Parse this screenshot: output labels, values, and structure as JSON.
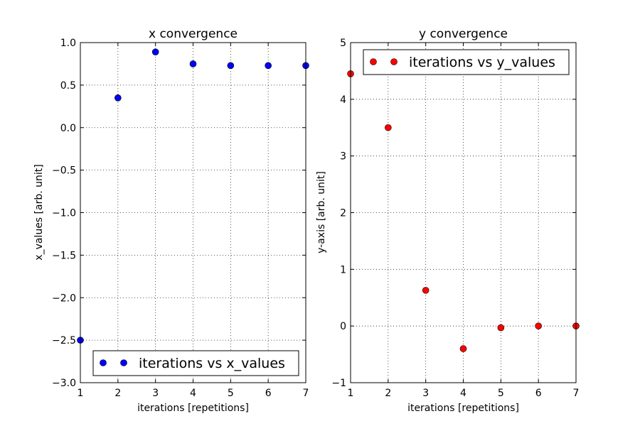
{
  "chart_data": [
    {
      "type": "scatter",
      "title": "x convergence",
      "xlabel": "iterations [repetitions]",
      "ylabel": "x_values [arb. unit]",
      "xlim": [
        1,
        7
      ],
      "ylim": [
        -3.0,
        1.0
      ],
      "xticks": [
        1,
        2,
        3,
        4,
        5,
        6,
        7
      ],
      "xtick_labels": [
        "1",
        "2",
        "3",
        "4",
        "5",
        "6",
        "7"
      ],
      "yticks": [
        -3.0,
        -2.5,
        -2.0,
        -1.5,
        -1.0,
        -0.5,
        0.0,
        0.5,
        1.0
      ],
      "ytick_labels": [
        "−3.0",
        "−2.5",
        "−2.0",
        "−1.5",
        "−1.0",
        "−0.5",
        "0.0",
        "0.5",
        "1.0"
      ],
      "grid": true,
      "legend_position": "lower-right",
      "series": [
        {
          "name": "iterations vs x_values",
          "color": "#0000ff",
          "x": [
            1,
            2,
            3,
            4,
            5,
            6,
            7
          ],
          "y": [
            -2.5,
            0.35,
            0.89,
            0.75,
            0.73,
            0.73,
            0.73
          ]
        }
      ]
    },
    {
      "type": "scatter",
      "title": "y convergence",
      "xlabel": "iterations [repetitions]",
      "ylabel": "y-axis [arb. unit]",
      "xlim": [
        1,
        7
      ],
      "ylim": [
        -1,
        5
      ],
      "xticks": [
        1,
        2,
        3,
        4,
        5,
        6,
        7
      ],
      "xtick_labels": [
        "1",
        "2",
        "3",
        "4",
        "5",
        "6",
        "7"
      ],
      "yticks": [
        -1,
        0,
        1,
        2,
        3,
        4,
        5
      ],
      "ytick_labels": [
        "−1",
        "0",
        "1",
        "2",
        "3",
        "4",
        "5"
      ],
      "grid": true,
      "legend_position": "upper-right",
      "series": [
        {
          "name": "iterations vs y_values",
          "color": "#ff0000",
          "x": [
            1,
            2,
            3,
            4,
            5,
            6,
            7
          ],
          "y": [
            4.45,
            3.5,
            0.63,
            -0.4,
            -0.03,
            0.0,
            0.0
          ]
        }
      ]
    }
  ]
}
